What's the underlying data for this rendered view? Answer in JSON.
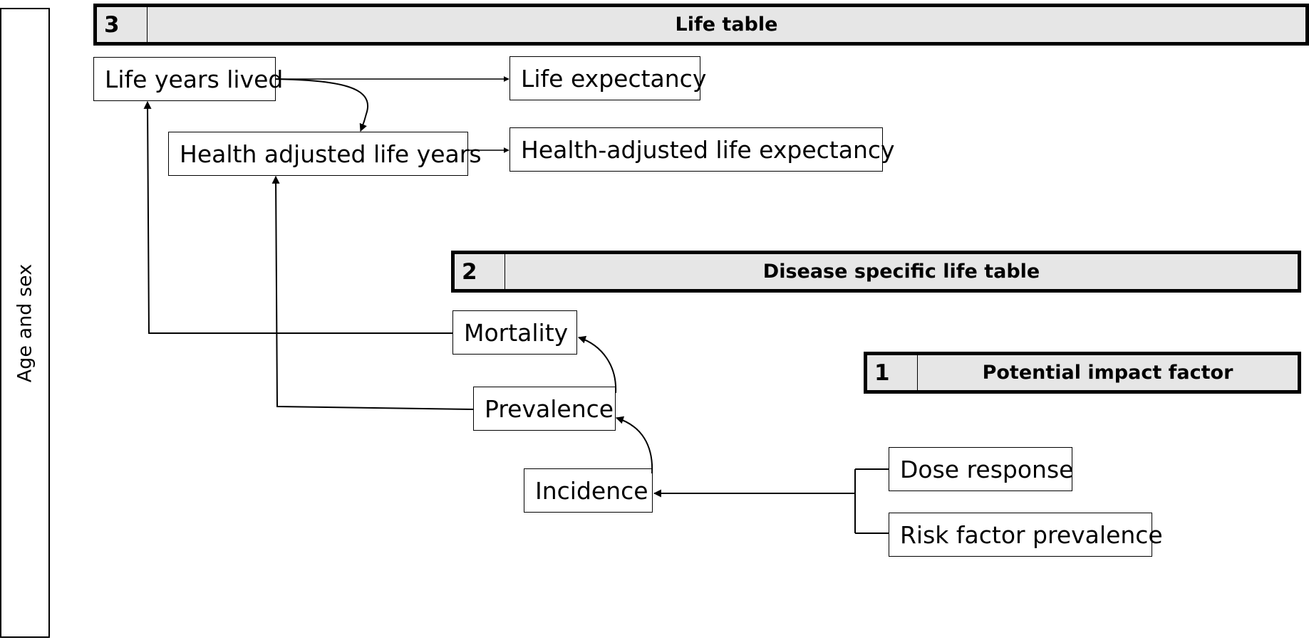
{
  "side_panel": {
    "label": "Age and sex"
  },
  "sections": {
    "life_table": {
      "number": "3",
      "title": "Life table"
    },
    "disease_table": {
      "number": "2",
      "title": "Disease specific life table"
    },
    "impact_factor": {
      "number": "1",
      "title": "Potential impact factor"
    }
  },
  "nodes": {
    "life_years_lived": "Life years lived",
    "life_expectancy": "Life expectancy",
    "health_adjusted_life_years": "Health adjusted life years",
    "health_adjusted_life_expectancy": "Health-adjusted life expectancy",
    "mortality": "Mortality",
    "prevalence": "Prevalence",
    "incidence": "Incidence",
    "dose_response": "Dose response",
    "risk_factor_prevalence": "Risk factor prevalence"
  }
}
